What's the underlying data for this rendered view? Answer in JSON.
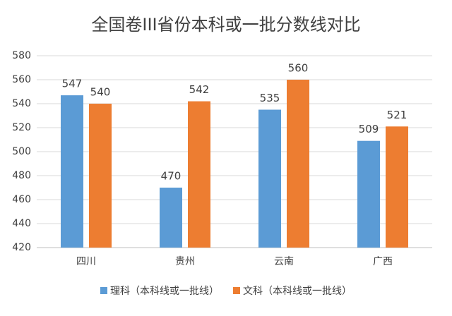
{
  "chart_data": {
    "type": "bar",
    "title": "全国卷III省份本科或一批分数线对比",
    "categories": [
      "四川",
      "贵州",
      "云南",
      "广西"
    ],
    "series": [
      {
        "name": "理科（本科线或一批线）",
        "color": "#5b9bd5",
        "values": [
          547,
          470,
          535,
          509
        ]
      },
      {
        "name": "文科（本科线或一批线）",
        "color": "#ed7d31",
        "values": [
          540,
          542,
          560,
          521
        ]
      }
    ],
    "ylim": [
      420,
      580
    ],
    "yticks": [
      420,
      440,
      460,
      480,
      500,
      520,
      540,
      560,
      580
    ],
    "grid": true,
    "legend": "bottom",
    "data_labels": true
  }
}
